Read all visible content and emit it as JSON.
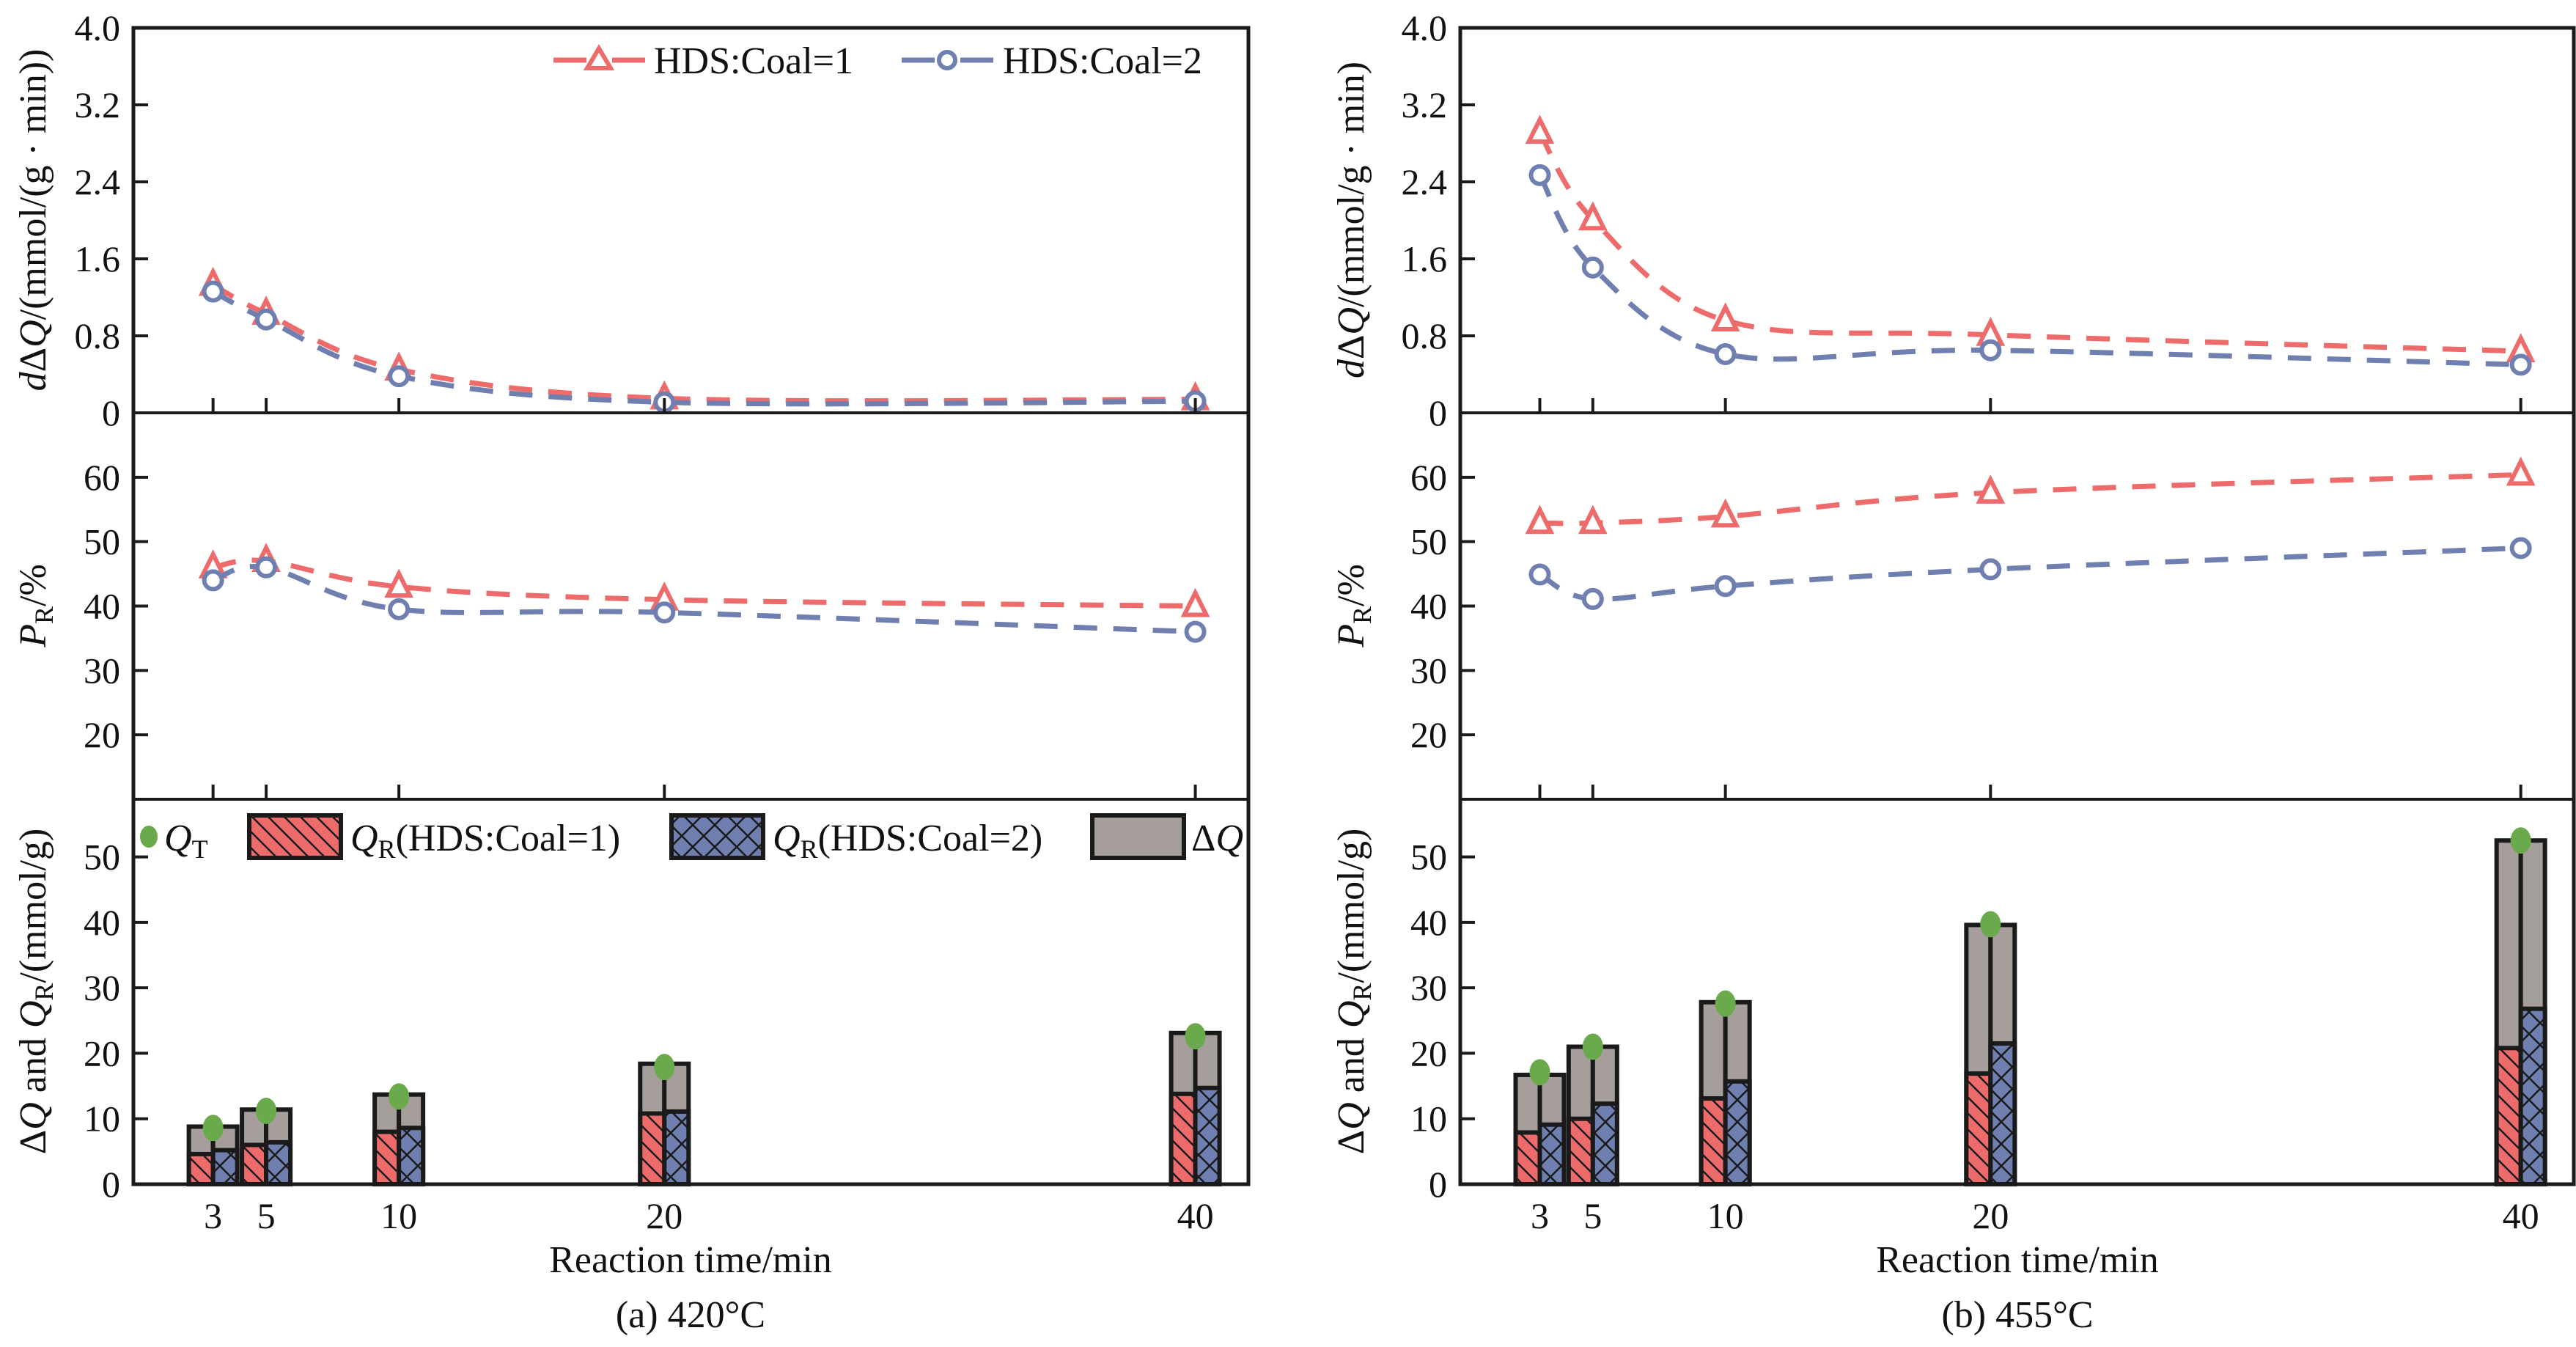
{
  "figure": {
    "colors": {
      "hds1": "#EE6B6B",
      "hds2": "#6F80B0",
      "delta_q": "#A69E9A",
      "q_total": "#6BAA4C",
      "bar_outline": "#1a1a1a"
    },
    "legend_top": [
      "HDS:Coal=1",
      "HDS:Coal=2"
    ],
    "legend_bottom": {
      "q_total": "Q",
      "q_total_sub": "T",
      "q_r1": "Q",
      "q_r1_sub": "R",
      "q_r1_text": "(HDS:Coal=1)",
      "q_r2": "Q",
      "q_r2_sub": "R",
      "q_r2_text": "(HDS:Coal=2)",
      "delta_q": "ΔQ"
    },
    "axis_labels": {
      "top_y": "dΔQ/(mmol/(g·min))",
      "top_y_right": "dΔQ/(mmol/g·min)",
      "mid_y": "P",
      "mid_y_sub": "R",
      "mid_y_suffix": "/%",
      "bottom_y_prefix": "ΔQ and Q",
      "bottom_y_sub": "R",
      "bottom_y_suffix": "/(mmol/g)",
      "x": "Reaction time/min"
    }
  },
  "chart_data": [
    {
      "id": "a",
      "caption": "(a) 420°C",
      "type": "line+stacked-bar",
      "x": [
        3,
        5,
        10,
        20,
        40
      ],
      "x_ticks": [
        "3",
        "5",
        "10",
        "20",
        "40"
      ],
      "xlabel": "Reaction time/min",
      "xlim": [
        0,
        42
      ],
      "panels": {
        "rate": {
          "type": "line",
          "ylabel": "dΔQ/(mmol/(g·min))",
          "ylim": [
            0,
            4.0
          ],
          "yticks": [
            "0",
            "0.8",
            "1.6",
            "2.4",
            "3.2",
            "4.0"
          ],
          "series": [
            {
              "name": "HDS:Coal=1",
              "marker": "triangle",
              "values": [
                1.33,
                1.03,
                0.45,
                0.15,
                0.14
              ]
            },
            {
              "name": "HDS:Coal=2",
              "marker": "circle",
              "values": [
                1.26,
                0.97,
                0.38,
                0.11,
                0.12
              ]
            }
          ],
          "legend": "top-right"
        },
        "pr": {
          "type": "line",
          "ylabel": "PR/%",
          "ylim": [
            10,
            70
          ],
          "yticks": [
            "20",
            "30",
            "40",
            "50",
            "60"
          ],
          "series": [
            {
              "name": "HDS:Coal=1",
              "marker": "triangle",
              "values": [
                46,
                47,
                43,
                41,
                40
              ]
            },
            {
              "name": "HDS:Coal=2",
              "marker": "circle",
              "values": [
                44,
                46,
                39.5,
                39,
                36
              ]
            }
          ]
        },
        "bars": {
          "type": "stacked-bar",
          "ylabel": "ΔQ and QR/(mmol/g)",
          "ylim": [
            0,
            58.8
          ],
          "yticks": [
            "0",
            "10",
            "20",
            "30",
            "40",
            "50"
          ],
          "q_r_hds1": [
            4.6,
            6.0,
            8.0,
            10.8,
            13.8
          ],
          "q_r_hds2": [
            5.2,
            6.4,
            8.6,
            11.1,
            14.7
          ],
          "total": [
            8.8,
            11.4,
            13.7,
            18.4,
            23.1
          ],
          "q_t": [
            8.6,
            11.2,
            13.4,
            17.9,
            22.6
          ],
          "legend": "top"
        }
      }
    },
    {
      "id": "b",
      "caption": "(b) 455°C",
      "type": "line+stacked-bar",
      "x": [
        3,
        5,
        10,
        20,
        40
      ],
      "x_ticks": [
        "3",
        "5",
        "10",
        "20",
        "40"
      ],
      "xlabel": "Reaction time/min",
      "xlim": [
        0,
        42
      ],
      "panels": {
        "rate": {
          "type": "line",
          "ylabel": "dΔQ/(mmol/g·min)",
          "ylim": [
            0,
            4.0
          ],
          "yticks": [
            "0",
            "0.8",
            "1.6",
            "2.4",
            "3.2",
            "4.0"
          ],
          "series": [
            {
              "name": "HDS:Coal=1",
              "marker": "triangle",
              "values": [
                2.91,
                2.01,
                0.96,
                0.81,
                0.64
              ]
            },
            {
              "name": "HDS:Coal=2",
              "marker": "circle",
              "values": [
                2.47,
                1.51,
                0.61,
                0.65,
                0.5
              ]
            }
          ]
        },
        "pr": {
          "type": "line",
          "ylabel": "PR/%",
          "ylim": [
            10,
            70
          ],
          "yticks": [
            "20",
            "30",
            "40",
            "50",
            "60"
          ],
          "series": [
            {
              "name": "HDS:Coal=1",
              "marker": "triangle",
              "values": [
                52.9,
                52.9,
                53.9,
                57.6,
                60.4
              ]
            },
            {
              "name": "HDS:Coal=2",
              "marker": "circle",
              "values": [
                44.9,
                41.1,
                43.1,
                45.7,
                49.0
              ]
            }
          ]
        },
        "bars": {
          "type": "stacked-bar",
          "ylabel": "ΔQ and QR/(mmol/g)",
          "ylim": [
            0,
            58.8
          ],
          "yticks": [
            "0",
            "10",
            "20",
            "30",
            "40",
            "50"
          ],
          "q_r_hds1": [
            7.9,
            10.0,
            13.1,
            16.9,
            20.8
          ],
          "q_r_hds2": [
            9.1,
            12.3,
            15.7,
            21.5,
            26.8
          ],
          "total": [
            16.7,
            21.0,
            27.8,
            39.6,
            52.5
          ],
          "q_t": [
            17.1,
            21.0,
            27.6,
            39.7,
            52.5
          ]
        }
      }
    }
  ]
}
